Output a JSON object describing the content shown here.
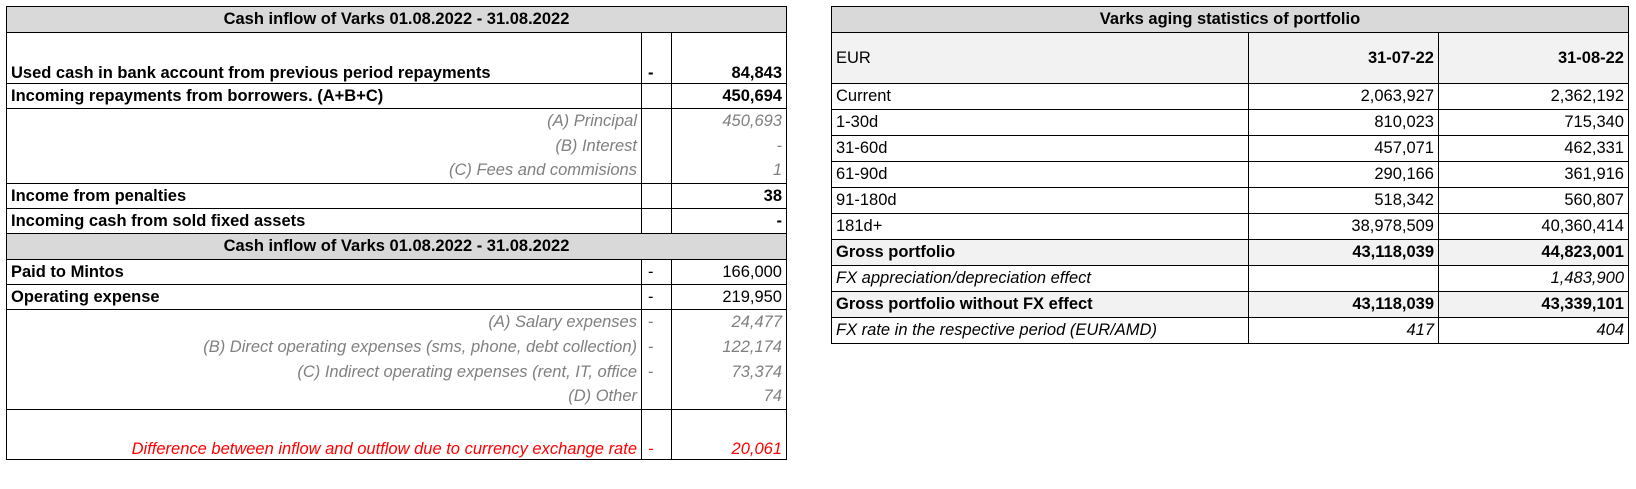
{
  "cash_inflow": {
    "title": "Cash inflow of Varks 01.08.2022 - 31.08.2022",
    "rows": [
      {
        "label": "Used cash in bank account from previous period repayments",
        "sign": "-",
        "value": "84,843"
      },
      {
        "label": "Incoming repayments from borrowers. (A+B+C)",
        "sign": "",
        "value": "450,694"
      },
      {
        "label": "(A) Principal",
        "sign": "",
        "value": "450,693"
      },
      {
        "label": "(B) Interest",
        "sign": "",
        "value": "-"
      },
      {
        "label": "(C) Fees and commisions",
        "sign": "",
        "value": "1"
      },
      {
        "label": "Income from penalties",
        "sign": "",
        "value": "38"
      },
      {
        "label": "Incoming cash from sold fixed assets",
        "sign": "",
        "value": "-"
      }
    ]
  },
  "cash_outflow": {
    "title": "Cash inflow of Varks 01.08.2022 - 31.08.2022",
    "rows": [
      {
        "label": "Paid to Mintos",
        "sign": "-",
        "value": "166,000"
      },
      {
        "label": "Operating expense",
        "sign": "-",
        "value": "219,950"
      },
      {
        "label": "(A) Salary expenses",
        "sign": "-",
        "value": "24,477"
      },
      {
        "label": "(B) Direct operating expenses (sms, phone, debt collection)",
        "sign": "-",
        "value": "122,174"
      },
      {
        "label": "(C) Indirect operating expenses (rent, IT, office",
        "sign": "-",
        "value": "73,374"
      },
      {
        "label": "(D) Other",
        "sign": "",
        "value": "74"
      },
      {
        "label": "Difference between inflow and outflow due to currency exchange rate",
        "sign": "-",
        "value": "20,061"
      }
    ]
  },
  "aging": {
    "title": "Varks aging statistics of portfolio",
    "currency_label": "EUR",
    "col1": "31-07-22",
    "col2": "31-08-22",
    "rows": [
      {
        "label": "Current",
        "v1": "2,063,927",
        "v2": "2,362,192"
      },
      {
        "label": "1-30d",
        "v1": "810,023",
        "v2": "715,340"
      },
      {
        "label": "31-60d",
        "v1": "457,071",
        "v2": "462,331"
      },
      {
        "label": "61-90d",
        "v1": "290,166",
        "v2": "361,916"
      },
      {
        "label": "91-180d",
        "v1": "518,342",
        "v2": "560,807"
      },
      {
        "label": "181d+",
        "v1": "38,978,509",
        "v2": "40,360,414"
      },
      {
        "label": "Gross portfolio",
        "v1": "43,118,039",
        "v2": "44,823,001"
      },
      {
        "label": "FX appreciation/depreciation effect",
        "v1": "",
        "v2": "1,483,900"
      },
      {
        "label": "Gross portfolio without FX effect",
        "v1": "43,118,039",
        "v2": "43,339,101"
      },
      {
        "label": "FX rate in the respective period (EUR/AMD)",
        "v1": "417",
        "v2": "404"
      }
    ]
  },
  "colors": {
    "header_bg": "#d9d9d9",
    "muted_text": "#808080",
    "alert_text": "#ff0000"
  }
}
